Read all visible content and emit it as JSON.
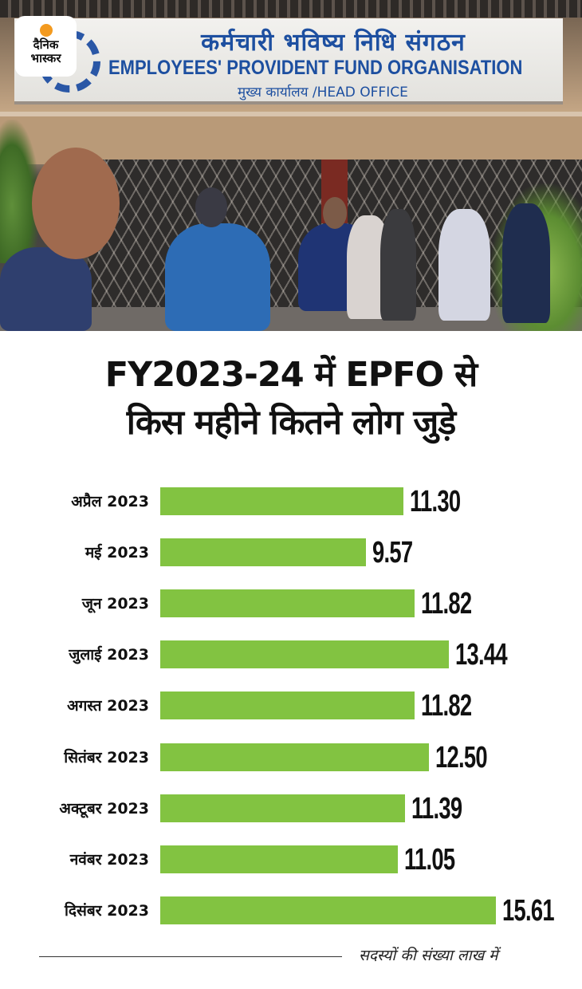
{
  "branding": {
    "logo_text_line1": "दैनिक",
    "logo_text_line2": "भास्कर",
    "logo_dot_color": "#f39a1f"
  },
  "photo": {
    "sign_hindi": "कर्मचारी भविष्य निधि संगठन",
    "sign_english": "EMPLOYEES' PROVIDENT FUND ORGANISATION",
    "sign_subtitle": "मुख्य कार्यालय /HEAD OFFICE"
  },
  "title": {
    "line1": "FY2023-24 में EPFO से",
    "line2": "किस महीने कितने लोग जुड़े"
  },
  "footer": {
    "unit_note": "सदस्यों की संख्या लाख में"
  },
  "colors": {
    "bar": "#82c341",
    "text": "#111111"
  },
  "chart_data": {
    "type": "bar",
    "orientation": "horizontal",
    "title": "FY2023-24 में EPFO से किस महीने कितने लोग जुड़े",
    "xlabel": "सदस्यों की संख्या लाख में",
    "ylabel": "",
    "categories": [
      "अप्रैल 2023",
      "मई 2023",
      "जून 2023",
      "जुलाई 2023",
      "अगस्त 2023",
      "सितंबर 2023",
      "अक्टूबर 2023",
      "नवंबर 2023",
      "दिसंबर 2023"
    ],
    "values": [
      11.3,
      9.57,
      11.82,
      13.44,
      11.82,
      12.5,
      11.39,
      11.05,
      15.61
    ],
    "value_labels": [
      "11.30",
      "9.57",
      "11.82",
      "13.44",
      "11.82",
      "12.50",
      "11.39",
      "11.05",
      "15.61"
    ],
    "grid": false,
    "legend": "none",
    "data_labels": "at bar end"
  }
}
